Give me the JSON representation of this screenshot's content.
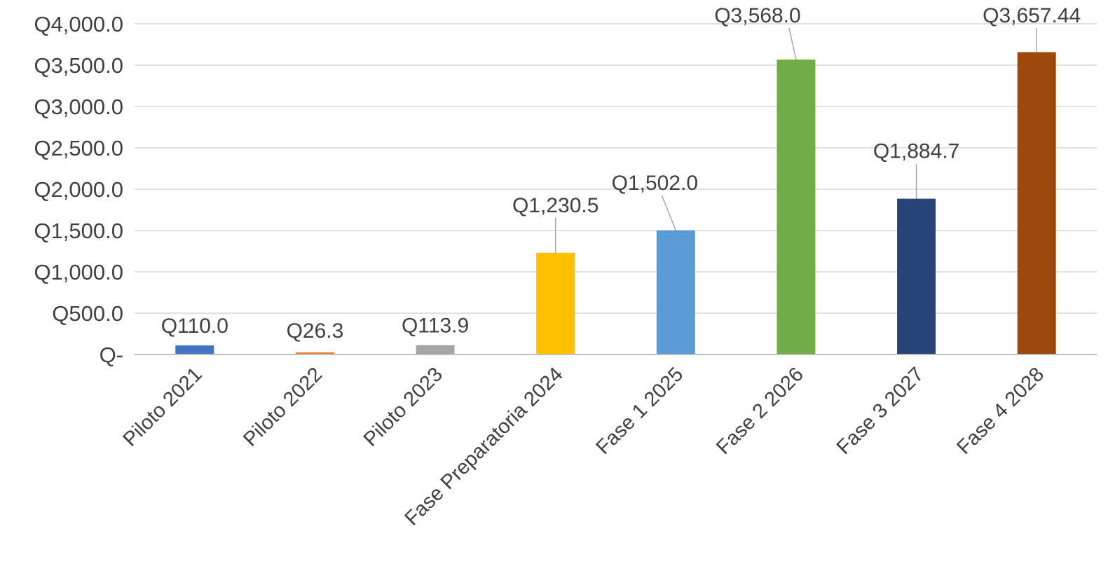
{
  "chart_data": {
    "type": "bar",
    "title": "",
    "xlabel": "",
    "ylabel": "",
    "categories": [
      "Piloto 2021",
      "Piloto 2022",
      "Piloto 2023",
      "Fase Preparatoria 2024",
      "Fase 1 2025",
      "Fase 2 2026",
      "Fase 3 2027",
      "Fase 4 2028"
    ],
    "values": [
      110.0,
      26.3,
      113.9,
      1230.5,
      1502.0,
      3568.0,
      1884.7,
      3657.44
    ],
    "data_labels": [
      "Q110.0",
      "Q26.3",
      "Q113.9",
      "Q1,230.5",
      "Q1,502.0",
      "Q3,568.0",
      "Q1,884.7",
      "Q3,657.44"
    ],
    "colors": [
      "#4472c4",
      "#ed7d31",
      "#a5a5a5",
      "#ffc000",
      "#5b9bd5",
      "#70ad47",
      "#264478",
      "#9e480e"
    ],
    "ylim": [
      0,
      4000
    ],
    "yticks": [
      0,
      500,
      1000,
      1500,
      2000,
      2500,
      3000,
      3500,
      4000
    ],
    "ytick_labels": [
      "Q-",
      "Q500.0",
      "Q1,000.0",
      "Q1,500.0",
      "Q2,000.0",
      "Q2,500.0",
      "Q3,000.0",
      "Q3,500.0",
      "Q4,000.0"
    ],
    "grid": true,
    "legend": "none"
  }
}
